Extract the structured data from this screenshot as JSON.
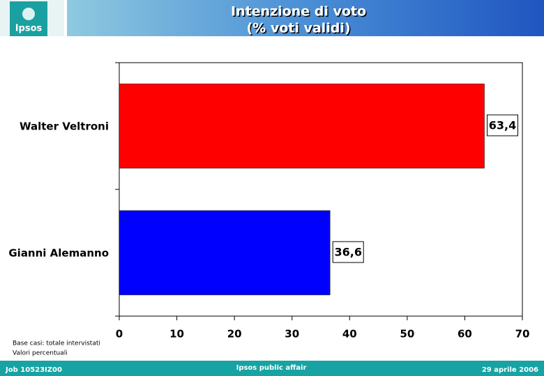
{
  "logo": "Ipsos",
  "notes": [
    "Base casi: totale intervistati",
    "Valori percentuali"
  ],
  "footer": {
    "left": "Job 10523IZ00",
    "center": "Ipsos public affair",
    "right": "29 aprile 2006"
  },
  "chart_data": {
    "type": "hbar",
    "title": "Intenzione di voto",
    "subtitle": "(% voti validi)",
    "categories": [
      "Walter Veltroni",
      "Gianni Alemanno"
    ],
    "values": [
      63.4,
      36.6
    ],
    "value_labels": [
      "63,4",
      "36,6"
    ],
    "colors": [
      "#ff0000",
      "#0000ff"
    ],
    "xlim": [
      0,
      70
    ],
    "xticks": [
      0,
      10,
      20,
      30,
      40,
      50,
      60,
      70
    ],
    "grid": false
  }
}
